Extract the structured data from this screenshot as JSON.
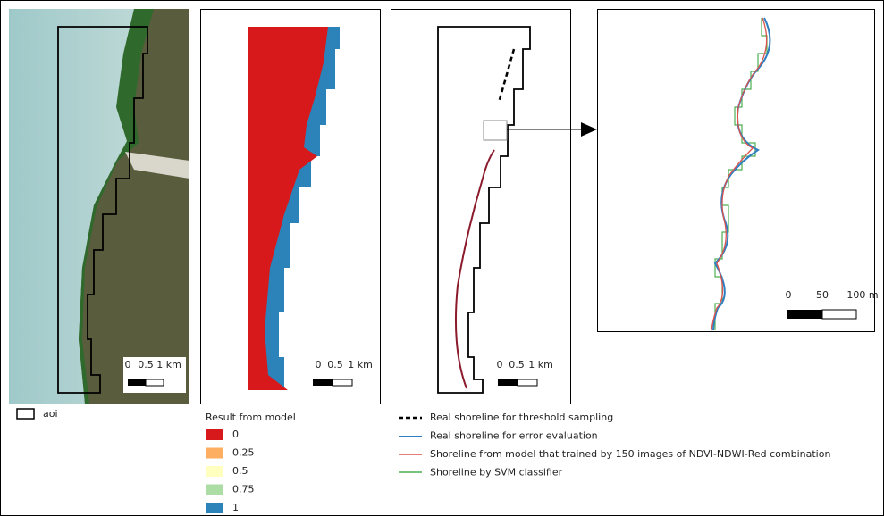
{
  "panels": [
    {
      "scale_labels": [
        "0",
        "0.5",
        "1 km"
      ]
    },
    {
      "scale_labels": [
        "0",
        "0.5",
        "1 km"
      ]
    },
    {
      "scale_labels": [
        "0",
        "0.5",
        "1 km"
      ]
    }
  ],
  "zoom": {
    "scale_labels": [
      "0",
      "50",
      "100 m"
    ]
  },
  "legend_aoi": {
    "label": "aoi"
  },
  "legend_result": {
    "title": "Result from model",
    "items": [
      {
        "label": "0",
        "color": "#d7191c"
      },
      {
        "label": "0.25",
        "color": "#fdae61"
      },
      {
        "label": "0.5",
        "color": "#ffffbf"
      },
      {
        "label": "0.75",
        "color": "#abdda4"
      },
      {
        "label": "1",
        "color": "#2b83ba"
      }
    ]
  },
  "legend_lines": {
    "items": [
      "Real shoreline for threshold sampling",
      "Real shoreline for error evaluation",
      "Shoreline from model that trained by 150 images of NDVI-NDWI-Red combination",
      "Shoreline by SVM classifier"
    ]
  }
}
